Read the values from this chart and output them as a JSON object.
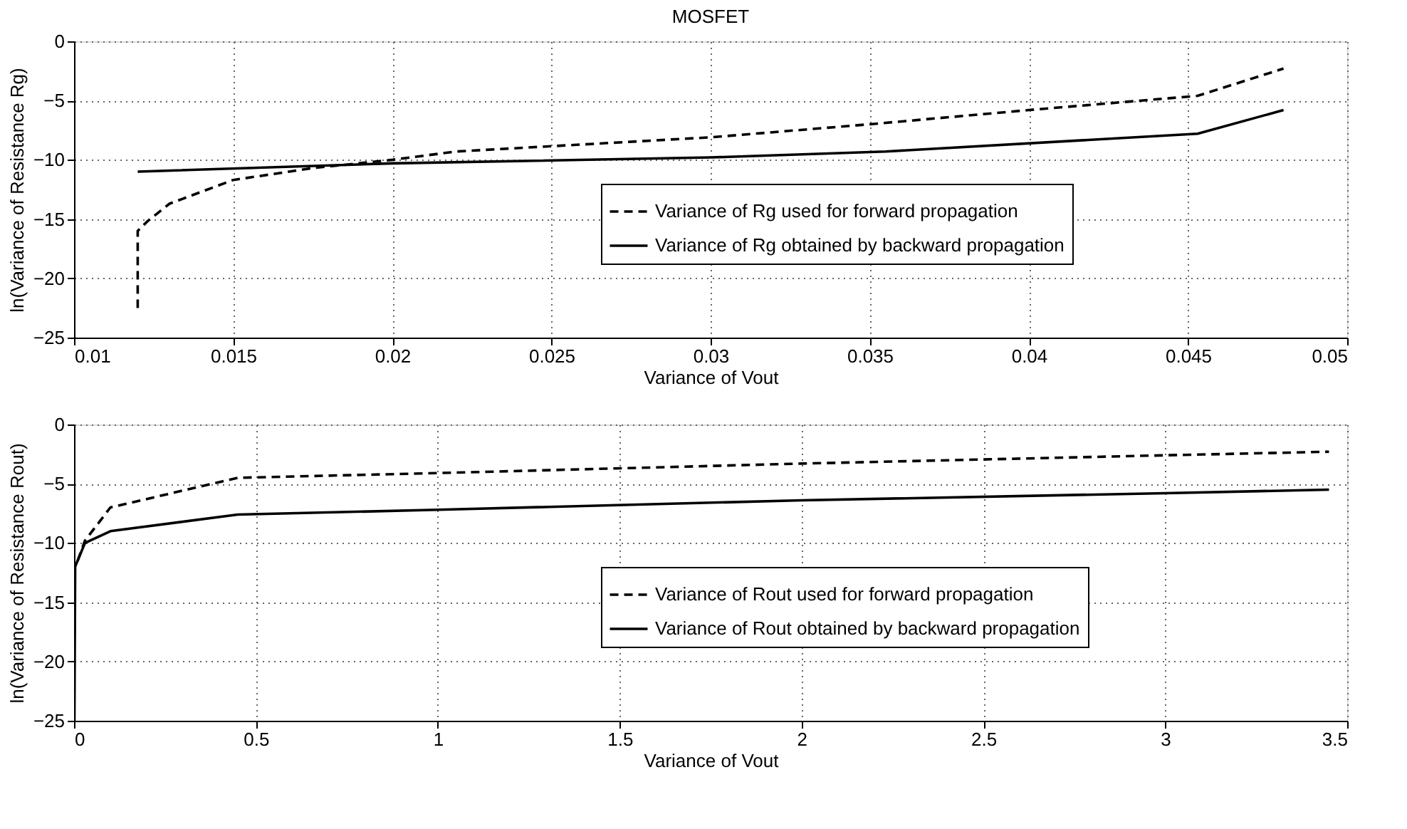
{
  "chart_data": [
    {
      "type": "line",
      "title": "MOSFET",
      "xlabel": "Variance of Vout",
      "ylabel": "ln(Variance of Resistance Rg)",
      "xlim": [
        0.01,
        0.05
      ],
      "xticks": [
        0.01,
        0.015,
        0.02,
        0.025,
        0.03,
        0.035,
        0.04,
        0.045,
        0.05
      ],
      "ylim": [
        -25,
        0
      ],
      "yticks": [
        -25,
        -20,
        -15,
        -10,
        -5,
        0
      ],
      "grid": true,
      "legend": "right",
      "series": [
        {
          "name": "Variance of Rg used for forward propagation",
          "color": "#000000",
          "line_style": "dashed",
          "x": [
            0.012,
            0.012,
            0.0123,
            0.013,
            0.015,
            0.0175,
            0.02,
            0.022,
            0.03,
            0.035,
            0.04,
            0.0453,
            0.048
          ],
          "values": [
            -22.5,
            -16,
            -15.2,
            -13.7,
            -11.7,
            -10.7,
            -10,
            -9.3,
            -8.1,
            -7,
            -5.8,
            -4.6,
            -2.3
          ]
        },
        {
          "name": "Variance of Rg obtained by backward propagation",
          "color": "#000000",
          "line_style": "solid",
          "x": [
            0.012,
            0.02,
            0.03,
            0.0355,
            0.0453,
            0.048
          ],
          "values": [
            -11,
            -10.3,
            -9.8,
            -9.3,
            -7.8,
            -5.8
          ]
        }
      ]
    },
    {
      "type": "line",
      "xlabel": "Variance of Vout",
      "ylabel": "ln(Variance of Resistance Rout)",
      "xlim": [
        0,
        3.5
      ],
      "xticks": [
        0,
        0.5,
        1,
        1.5,
        2,
        2.5,
        3,
        3.5
      ],
      "ylim": [
        -25,
        0
      ],
      "yticks": [
        -25,
        -20,
        -15,
        -10,
        -5,
        0
      ],
      "grid": true,
      "legend": "right",
      "series": [
        {
          "name": "Variance of Rout used for forward propagation",
          "color": "#000000",
          "line_style": "dashed",
          "x": [
            0.01,
            0.03,
            0.1,
            0.45,
            1,
            2,
            3,
            3.45
          ],
          "values": [
            -11.5,
            -9.8,
            -7,
            -4.5,
            -4.1,
            -3.3,
            -2.6,
            -2.3
          ]
        },
        {
          "name": "Variance of Rout obtained by backward propagation",
          "color": "#000000",
          "line_style": "solid",
          "x": [
            0.001,
            0.003,
            0.03,
            0.1,
            0.45,
            1,
            2,
            3,
            3.45
          ],
          "values": [
            -25,
            -12,
            -10,
            -9,
            -7.6,
            -7.2,
            -6.4,
            -5.8,
            -5.5
          ]
        }
      ]
    }
  ]
}
